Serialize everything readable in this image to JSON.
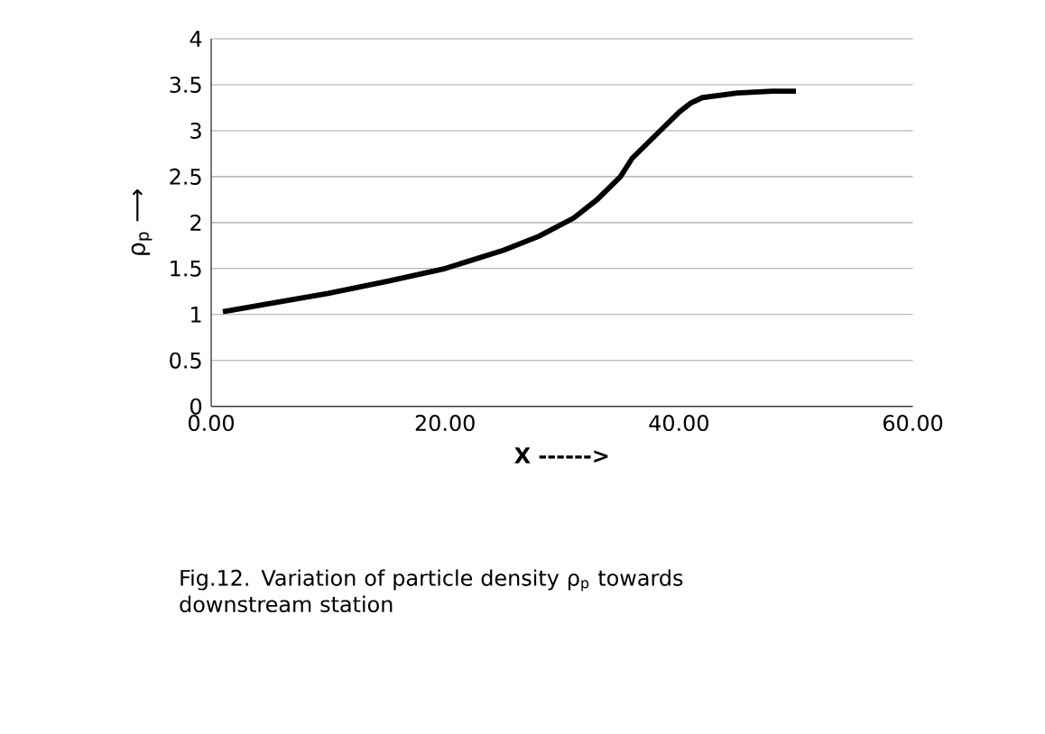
{
  "chart_data": {
    "type": "line",
    "xlabel": "X ------>",
    "ylabel": "ρ$_{p}$ ⟶",
    "annotations": [
      "Fig.12. Variation of particle density  ρ$_{p}$ towards  downstream station"
    ],
    "x": [
      1,
      5,
      10,
      15,
      20,
      25,
      28,
      31,
      33,
      35,
      36,
      38,
      40,
      41,
      42,
      45,
      48,
      50
    ],
    "series": [
      {
        "color": "#000000",
        "values": [
          1.03,
          1.12,
          1.23,
          1.36,
          1.5,
          1.7,
          1.85,
          2.05,
          2.25,
          2.5,
          2.7,
          2.95,
          3.2,
          3.3,
          3.36,
          3.41,
          3.43,
          3.43
        ]
      }
    ],
    "xlim": [
      0,
      60
    ],
    "xticks": [
      {
        "value": 0,
        "label": "0.00"
      },
      {
        "value": 20,
        "label": "20.00"
      },
      {
        "value": 40,
        "label": "40.00"
      },
      {
        "value": 60,
        "label": "60.00"
      }
    ],
    "ylim": [
      0,
      4
    ],
    "yticks": [
      0,
      0.5,
      1,
      1.5,
      2,
      2.5,
      3,
      3.5,
      4
    ],
    "grid": "y",
    "marker": "none",
    "line_style": "solid"
  }
}
